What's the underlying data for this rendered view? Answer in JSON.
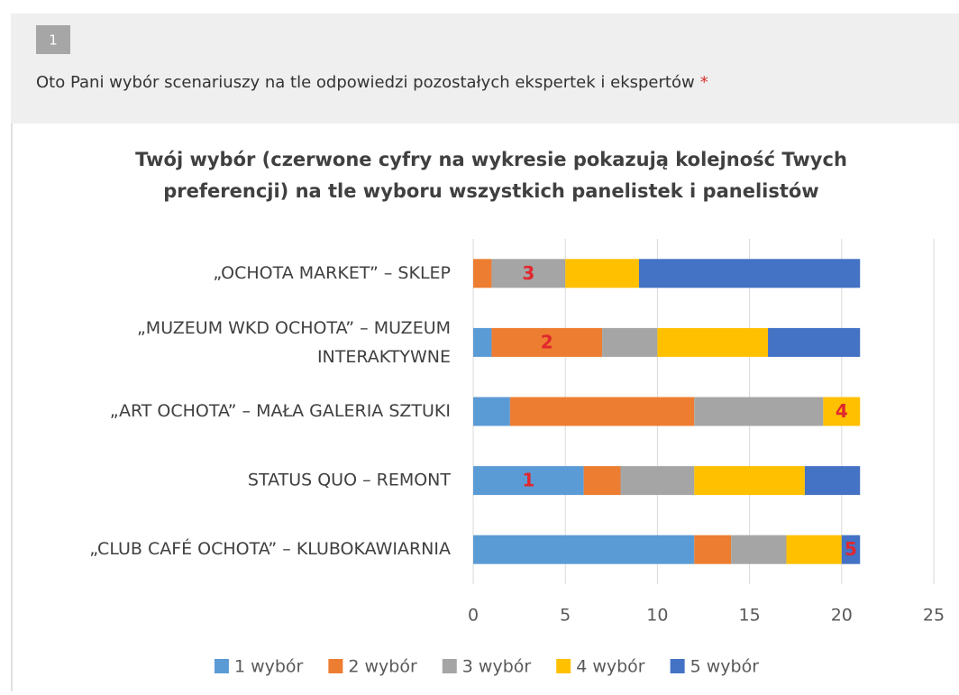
{
  "question": {
    "number": "1",
    "text": "Oto Pani wybór scenariuszy na tle odpowiedzi pozostałych ekspertek i ekspertów",
    "required_mark": "*"
  },
  "chart_data": {
    "type": "stacked_bar_horizontal",
    "title": "Twój wybór (czerwone cyfry na wykresie pokazują kolejność Twych preferencji) na tle wyboru wszystkich panelistek i panelistów",
    "categories": [
      "„OCHOTA MARKET” – SKLEP",
      "„MUZEUM WKD OCHOTA” – MUZEUM INTERAKTYWNE",
      "„ART OCHOTA” – MAŁA GALERIA SZTUKI",
      "STATUS QUO – REMONT",
      "„CLUB CAFÉ OCHOTA” – KLUBOKAWIARNIA"
    ],
    "series": [
      {
        "name": "1 wybór",
        "color": "#5b9bd5",
        "values": [
          0,
          1,
          2,
          6,
          12
        ],
        "annotations": [
          null,
          null,
          null,
          "1",
          null
        ]
      },
      {
        "name": "2 wybór",
        "color": "#ed7d31",
        "values": [
          1,
          6,
          10,
          2,
          2
        ],
        "annotations": [
          null,
          "2",
          null,
          null,
          null
        ]
      },
      {
        "name": "3 wybór",
        "color": "#a5a5a5",
        "values": [
          4,
          3,
          7,
          4,
          3
        ],
        "annotations": [
          "3",
          null,
          null,
          null,
          null
        ]
      },
      {
        "name": "4 wybór",
        "color": "#ffc000",
        "values": [
          4,
          6,
          2,
          6,
          3
        ],
        "annotations": [
          null,
          null,
          "4",
          null,
          null
        ]
      },
      {
        "name": "5 wybór",
        "color": "#4472c4",
        "values": [
          12,
          5,
          0,
          3,
          1
        ],
        "annotations": [
          null,
          null,
          null,
          null,
          "5"
        ]
      }
    ],
    "xlim": [
      0,
      25
    ],
    "xticks": [
      0,
      5,
      10,
      15,
      20,
      25
    ],
    "grid": true,
    "legend": "bottom",
    "annotation_color": "#e0282e"
  }
}
